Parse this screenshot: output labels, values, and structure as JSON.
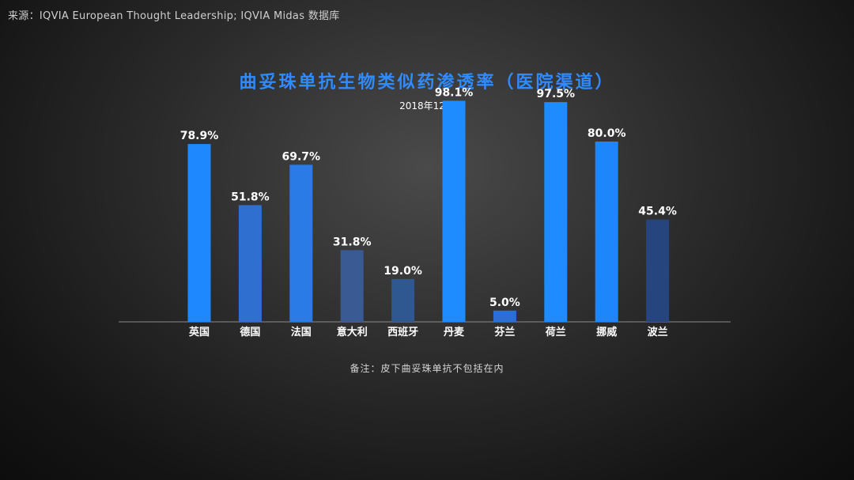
{
  "source": "来源：IQVIA European Thought Leadership; IQVIA Midas 数据库",
  "note": "备注：皮下曲妥珠单抗不包括在内",
  "chart_data": {
    "type": "bar",
    "title": "曲妥珠单抗生物类似药渗透率（医院渠道）",
    "subtitle": "2018年12月",
    "categories": [
      "英国",
      "德国",
      "法国",
      "意大利",
      "西班牙",
      "丹麦",
      "芬兰",
      "荷兰",
      "挪威",
      "波兰"
    ],
    "values": [
      78.9,
      51.8,
      69.7,
      31.8,
      19.0,
      98.1,
      5.0,
      97.5,
      80.0,
      45.4
    ],
    "data_labels": [
      "78.9%",
      "51.8%",
      "69.7%",
      "31.8%",
      "19.0%",
      "98.1%",
      "5.0%",
      "97.5%",
      "80.0%",
      "45.4%"
    ],
    "ylim": [
      0,
      100
    ],
    "grid": false,
    "colors": [
      "#1e88ff",
      "#2e6fd0",
      "#2a7be6",
      "#3a5a94",
      "#2f5890",
      "#1e8cff",
      "#2a6fd8",
      "#1e8cff",
      "#1e86fb",
      "#26457e"
    ]
  }
}
